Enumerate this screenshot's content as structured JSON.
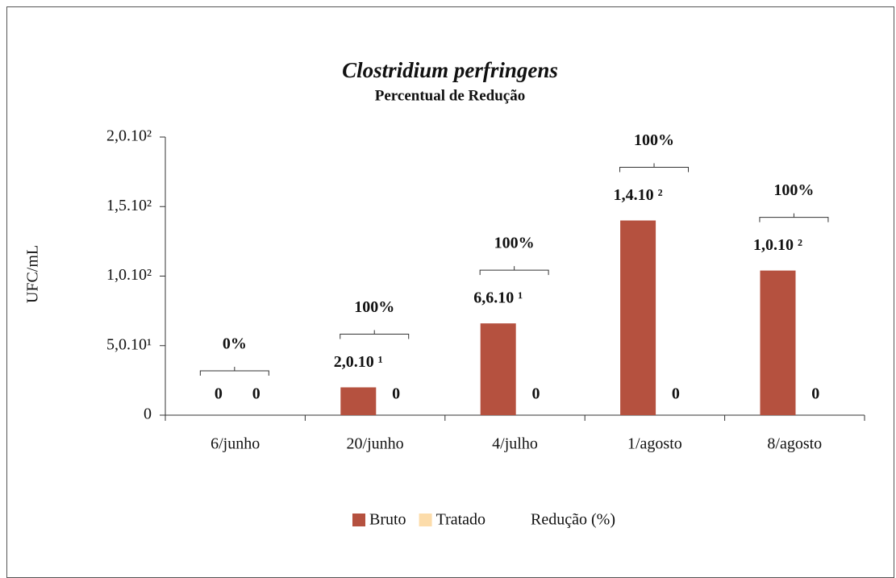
{
  "chart_data": {
    "type": "bar",
    "title": "Clostridium perfringens",
    "subtitle": "Percentual de Redução",
    "y_label": "UFC/mL",
    "categories": [
      "6/junho",
      "20/junho",
      "4/julho",
      "1/agosto",
      "8/agosto"
    ],
    "series": [
      {
        "name": "Bruto",
        "color": "#b5513f",
        "values": [
          0,
          20,
          66,
          140,
          104
        ],
        "value_labels": [
          "0",
          "2,0.10 ¹",
          "6,6.10 ¹",
          "1,4.10 ²",
          "1,0.10 ²"
        ]
      },
      {
        "name": "Tratado",
        "color": "#fcdcaa",
        "values": [
          0,
          0,
          0,
          0,
          0
        ]
      },
      {
        "name": "Redução (%)",
        "values": [
          0,
          100,
          100,
          100,
          100
        ],
        "value_labels": [
          "0%",
          "100%",
          "100%",
          "100%",
          "100%"
        ]
      }
    ],
    "ylim": [
      0,
      200
    ],
    "yticks": [
      0,
      {
        "value": 50,
        "label": "5,0.10¹"
      },
      {
        "value": 100,
        "label": "1,0.10²"
      },
      {
        "value": 150,
        "label": "1,5.10²"
      },
      {
        "value": 200,
        "label": "2,0.10²"
      }
    ],
    "legend": "bottom"
  }
}
